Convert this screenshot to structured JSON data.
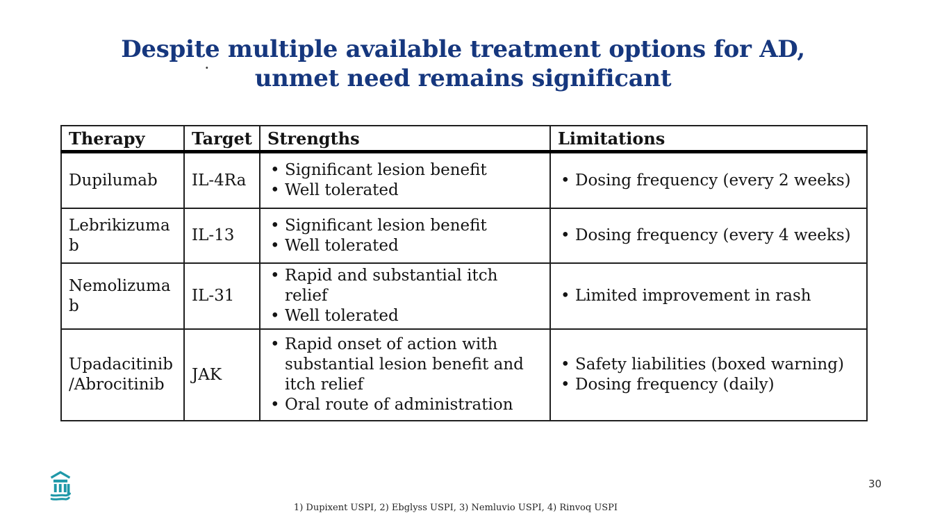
{
  "colors": {
    "title_text": "#16377e",
    "logo_teal": "#1f98a8",
    "border_dark": "#1f1f1f",
    "body_text": "#141414",
    "footnote_text": "#222222",
    "page_number_text": "#303030"
  },
  "slide": {
    "title_line1": "Despite multiple available treatment options for AD,",
    "title_line2": "unmet need remains significant",
    "stray_dot": ".",
    "page_number": "30",
    "footnote": "1) Dupixent USPI, 2) Ebglyss USPI, 3) Nemluvio USPI, 4) Rinvoq USPI"
  },
  "logo": {
    "name": "teal classical building / columns logo"
  },
  "table": {
    "headers": [
      "Therapy",
      "Target",
      "Strengths",
      "Limitations"
    ],
    "rows": [
      {
        "therapy": "Dupilumab",
        "target": "IL-4Ra",
        "strengths": [
          "Significant lesion benefit",
          "Well tolerated"
        ],
        "limitations": [
          "Dosing frequency (every 2 weeks)"
        ]
      },
      {
        "therapy": "Lebrikizumab",
        "target": "IL-13",
        "strengths": [
          "Significant lesion benefit",
          "Well tolerated"
        ],
        "limitations": [
          "Dosing frequency (every 4 weeks)"
        ]
      },
      {
        "therapy": "Nemolizumab",
        "target": "IL-31",
        "strengths": [
          "Rapid and substantial itch relief",
          "Well tolerated"
        ],
        "limitations": [
          "Limited improvement in rash"
        ]
      },
      {
        "therapy": "Upadacitinib/Abrocitinib",
        "target": "JAK",
        "strengths": [
          "Rapid onset of action with substantial lesion benefit and itch relief",
          "Oral route of administration"
        ],
        "limitations": [
          "Safety liabilities (boxed warning)",
          "Dosing frequency (daily)"
        ]
      }
    ]
  }
}
